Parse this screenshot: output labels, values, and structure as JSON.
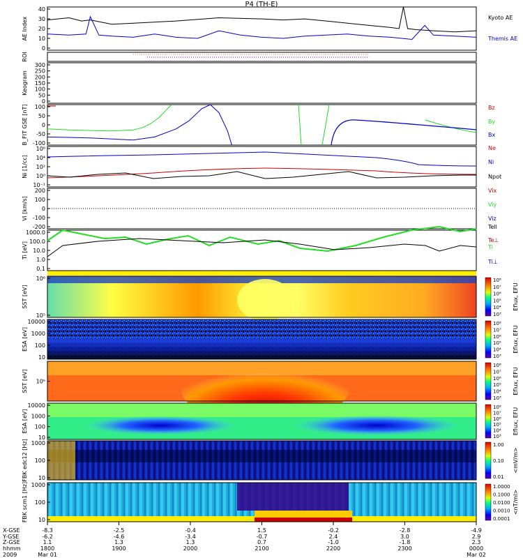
{
  "title": "P4 (TH-E)",
  "colors": {
    "black": "#000000",
    "red": "#cc0000",
    "green": "#22dd22",
    "blue": "#0000cc",
    "orange": "#ff7700",
    "purple": "#6600cc",
    "cyan": "#33bbff"
  },
  "chart_data": [
    {
      "type": "line",
      "id": "ae",
      "ylabel": "AE Index",
      "yticks": [
        "40",
        "30",
        "20",
        "10",
        "0"
      ],
      "ylim": [
        0,
        40
      ],
      "series": [
        {
          "name": "Kyoto AE",
          "color": "#000000",
          "x": [
            0,
            0.05,
            0.08,
            0.1,
            0.15,
            0.2,
            0.3,
            0.4,
            0.5,
            0.55,
            0.6,
            0.65,
            0.7,
            0.75,
            0.8,
            0.82,
            0.83,
            0.84,
            0.86,
            0.9,
            0.95,
            1.0
          ],
          "y": [
            28,
            30,
            27,
            28,
            24,
            25,
            27,
            30,
            29,
            28,
            29,
            27,
            25,
            23,
            21,
            20,
            40,
            20,
            19,
            18,
            17,
            18
          ]
        },
        {
          "name": "Themis AE",
          "color": "#0000cc",
          "x": [
            0,
            0.05,
            0.09,
            0.1,
            0.12,
            0.15,
            0.2,
            0.25,
            0.3,
            0.35,
            0.4,
            0.45,
            0.5,
            0.55,
            0.6,
            0.65,
            0.7,
            0.75,
            0.8,
            0.85,
            0.88,
            0.9,
            0.95,
            1.0
          ],
          "y": [
            15,
            14,
            15,
            31,
            14,
            13,
            12,
            15,
            12,
            11,
            18,
            14,
            12,
            11,
            13,
            14,
            15,
            13,
            12,
            10,
            23,
            14,
            13,
            12
          ]
        }
      ]
    },
    {
      "type": "scatter",
      "id": "roi",
      "ylabel": "ROI",
      "x_range": [
        0.2,
        0.75
      ]
    },
    {
      "type": "line",
      "id": "keogram",
      "ylabel": "Keogram",
      "yticks": [
        "300",
        "250",
        "200",
        "150",
        "100",
        "50",
        "0"
      ],
      "ylim": [
        0,
        300
      ]
    },
    {
      "type": "line",
      "id": "bfield",
      "ylabel": "B_FIT GSE [nT]",
      "yticks": [
        "100",
        "50",
        "0",
        "-50",
        "-100"
      ],
      "ylim": [
        -100,
        100
      ],
      "series": [
        {
          "name": "Bz",
          "color": "#cc0000"
        },
        {
          "name": "By",
          "color": "#22dd22",
          "x": [
            0,
            0.05,
            0.1,
            0.15,
            0.2,
            0.22,
            0.24,
            0.26,
            0.28,
            0.29
          ],
          "y": [
            -20,
            -25,
            -28,
            -30,
            -25,
            -15,
            5,
            35,
            80,
            100
          ]
        },
        {
          "name": "Bx",
          "color": "#0000cc",
          "x": [
            0,
            0.05,
            0.1,
            0.15,
            0.2,
            0.25,
            0.3,
            0.33,
            0.36,
            0.38,
            0.4,
            0.42,
            0.43
          ],
          "y": [
            -60,
            -62,
            -65,
            -70,
            -75,
            -60,
            -20,
            20,
            80,
            100,
            60,
            -30,
            -100
          ]
        }
      ]
    },
    {
      "type": "line",
      "id": "density",
      "ylabel": "Ni [1/cc]",
      "yticks": [
        "10⁶",
        "10⁴",
        "10²",
        "10⁰",
        "10⁻¹"
      ],
      "series": [
        {
          "name": "Ne",
          "color": "#cc0000"
        },
        {
          "name": "Ni",
          "color": "#0000cc"
        },
        {
          "name": "Npot",
          "color": "#000000"
        }
      ]
    },
    {
      "type": "line",
      "id": "velocity",
      "ylabel": "Vi [km/s]",
      "yticks": [
        "200",
        "100",
        "0",
        "-100",
        "-200"
      ],
      "ylim": [
        -250,
        250
      ],
      "series": [
        {
          "name": "Vix",
          "color": "#cc0000"
        },
        {
          "name": "Viy",
          "color": "#22dd22"
        },
        {
          "name": "Viz",
          "color": "#0000cc"
        }
      ]
    },
    {
      "type": "line",
      "id": "temp",
      "ylabel": "Ti [eV]",
      "yticks": [
        "1000.0",
        "100.0",
        "10.0",
        "1.0",
        "0.1"
      ],
      "series": [
        {
          "name": "Tell",
          "color": "#000000"
        },
        {
          "name": "Te⊥",
          "color": "#cc0000"
        },
        {
          "name": "Ti",
          "color": "#22dd22"
        },
        {
          "name": "Ti⊥",
          "color": "#0000cc"
        }
      ]
    },
    {
      "type": "heatmap",
      "id": "sst_e",
      "ylabel": "SST [eV]",
      "yticks": [
        "10⁶",
        "10⁵"
      ],
      "cbar_label": "Eflux, EFU",
      "cbar_ticks": [
        "10⁸",
        "10⁷",
        "10⁶",
        "10⁵",
        "10⁴",
        "10³"
      ]
    },
    {
      "type": "heatmap",
      "id": "esa_e",
      "ylabel": "ESA [eV]",
      "yticks": [
        "10000",
        "1000",
        "100",
        "10"
      ],
      "cbar_label": "Eflux, EFU",
      "cbar_ticks": [
        "10⁸",
        "10⁷",
        "10⁶",
        "10⁵",
        "10⁴",
        "10³"
      ]
    },
    {
      "type": "heatmap",
      "id": "sst_i",
      "ylabel": "SST [eV]",
      "yticks": [
        "10⁵"
      ],
      "cbar_label": "Eflux, EFU",
      "cbar_ticks": [
        "10⁸",
        "10⁷",
        "10⁶",
        "10⁵",
        "10⁴",
        "10³"
      ]
    },
    {
      "type": "heatmap",
      "id": "esa_i",
      "ylabel": "ESA [eV]",
      "yticks": [
        "10000",
        "1000",
        "100",
        "10"
      ],
      "cbar_label": "Eflux, EFU",
      "cbar_ticks": [
        "10⁸",
        "10⁷",
        "10⁶",
        "10⁵",
        "10⁴",
        "10³"
      ]
    },
    {
      "type": "heatmap",
      "id": "fbk_e",
      "ylabel": "FBK edc12 [Hz]",
      "yticks": [
        "1000",
        "100",
        "10"
      ],
      "cbar_label": "<mV/m>",
      "cbar_ticks": [
        "1.00",
        "0.10",
        "0.01"
      ]
    },
    {
      "type": "heatmap",
      "id": "fbk_b",
      "ylabel": "FBK scm1 [Hz]",
      "yticks": [
        "1000",
        "100",
        "10"
      ],
      "cbar_label": "<nT/ml>",
      "cbar_ticks": [
        "1.0000",
        "0.1000",
        "0.0100",
        "0.0010",
        "0.0001"
      ]
    }
  ],
  "xaxis": {
    "row_labels": [
      "X-GSE",
      "Y-GSE",
      "Z-GSE",
      "hhmm",
      "2009"
    ],
    "ticks": [
      {
        "rows": [
          "-8.3",
          "-6.2",
          "1.1",
          "1800",
          "Mar 01"
        ]
      },
      {
        "rows": [
          "-2.5",
          "-4.6",
          "1.3",
          "1900",
          ""
        ]
      },
      {
        "rows": [
          "-0.4",
          "-3.4",
          "1.3",
          "2000",
          ""
        ]
      },
      {
        "rows": [
          "1.5",
          "-0.7",
          "0.7",
          "2100",
          ""
        ]
      },
      {
        "rows": [
          "-0.2",
          "2.4",
          "-1.0",
          "2200",
          ""
        ]
      },
      {
        "rows": [
          "-2.8",
          "3.0",
          "-1.8",
          "2300",
          ""
        ]
      },
      {
        "rows": [
          "-4.9",
          "2.9",
          "2.3",
          "0000",
          "Mar 02"
        ]
      }
    ]
  }
}
